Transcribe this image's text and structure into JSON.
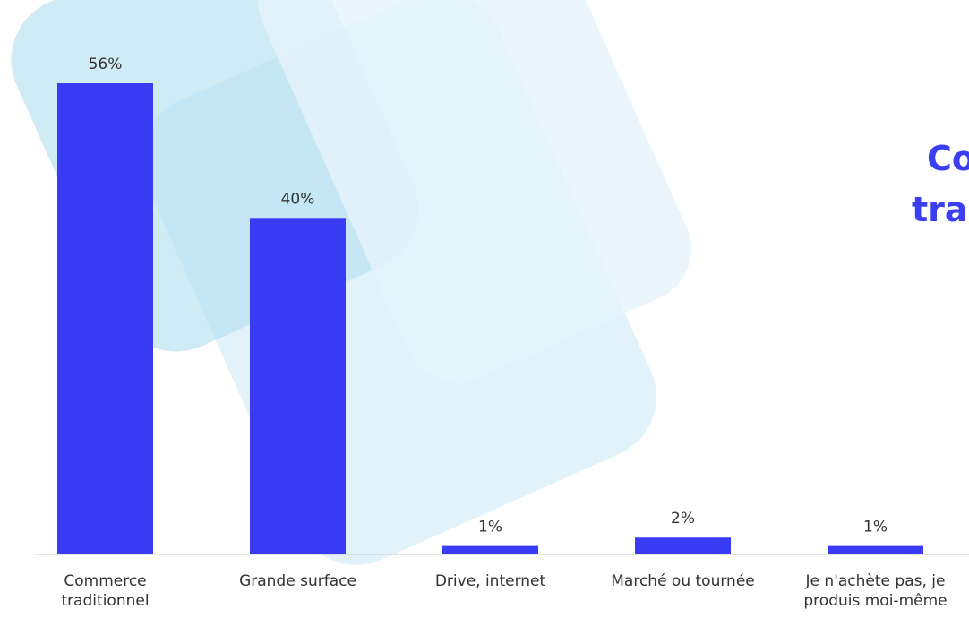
{
  "chart_data": {
    "type": "bar",
    "title_lines": [
      "Co",
      "tra"
    ],
    "categories": [
      "Commerce traditionnel",
      "Grande surface",
      "Drive, internet",
      "Marché ou tournée",
      "Je n'achète pas, je produis moi-même"
    ],
    "values": [
      56,
      40,
      1,
      2,
      1
    ],
    "value_labels": [
      "56%",
      "40%",
      "1%",
      "2%",
      "1%"
    ],
    "color": "#3a3cf5"
  }
}
